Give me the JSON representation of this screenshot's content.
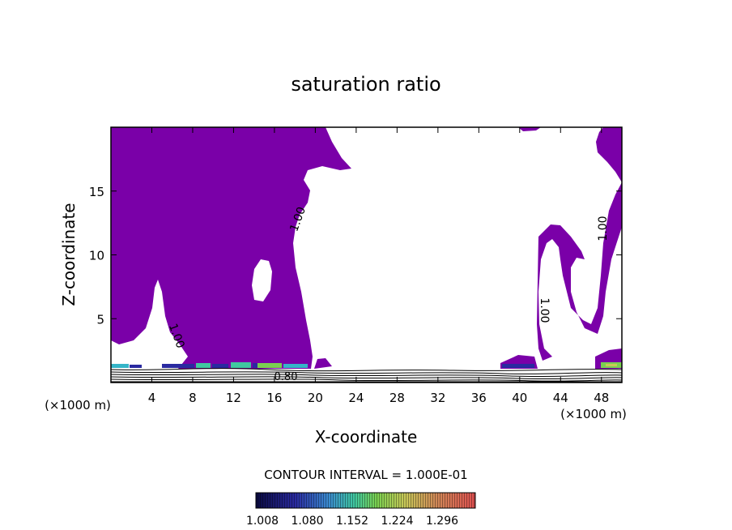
{
  "chart_data": {
    "type": "contour",
    "title": "saturation ratio",
    "xlabel": "X-coordinate",
    "ylabel": "Z-coordinate",
    "x_unit_label": "(×1000 m)",
    "x_unit_label_2": "(×1000 m)",
    "xlim": [
      0,
      50
    ],
    "ylim": [
      0,
      20
    ],
    "xticks": [
      4,
      8,
      12,
      16,
      20,
      24,
      28,
      32,
      36,
      40,
      44,
      48
    ],
    "yticks": [
      5,
      10,
      15
    ],
    "fill_color": "#7a00a8",
    "fill_region": "saturation ratio >= 1.00",
    "contour_labels": [
      {
        "text": "1.00",
        "x": 18.3,
        "z": 12.5
      },
      {
        "text": "1.00",
        "x": 6.3,
        "z": 3.8
      },
      {
        "text": "1.00",
        "x": 42.0,
        "z": 5.8
      },
      {
        "text": "1.00",
        "x": 48.4,
        "z": 11.2
      },
      {
        "text": "0.80",
        "x": 17.2,
        "z": 0.55
      }
    ],
    "contour_interval_text": "CONTOUR INTERVAL = 1.000E-01",
    "colorbar": {
      "ticks": [
        "1.008",
        "1.080",
        "1.152",
        "1.224",
        "1.296"
      ],
      "colors": [
        "#0a0a50",
        "#2a2aa0",
        "#3a8ad0",
        "#40c8a0",
        "#7ad050",
        "#c8c858",
        "#d08a58",
        "#e05050"
      ]
    }
  }
}
